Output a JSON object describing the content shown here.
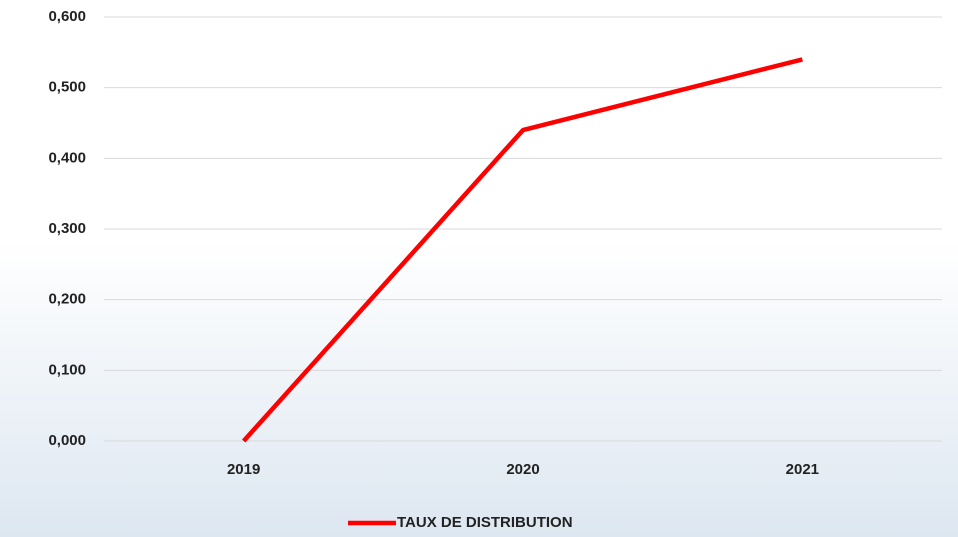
{
  "chart_data": {
    "type": "line",
    "categories": [
      "2019",
      "2020",
      "2021"
    ],
    "series": [
      {
        "name": "TAUX DE DISTRIBUTION",
        "color": "#ff0000",
        "values": [
          0,
          0.44,
          0.54
        ]
      }
    ],
    "ylim": [
      0,
      0.6
    ],
    "yticks": [
      {
        "value": 0,
        "label": "0,000"
      },
      {
        "value": 0.1,
        "label": "0,100"
      },
      {
        "value": 0.2,
        "label": "0,200"
      },
      {
        "value": 0.3,
        "label": "0,300"
      },
      {
        "value": 0.4,
        "label": "0,400"
      },
      {
        "value": 0.5,
        "label": "0,500"
      },
      {
        "value": 0.6,
        "label": "0,600"
      }
    ],
    "grid": true,
    "legend": "bottom"
  }
}
